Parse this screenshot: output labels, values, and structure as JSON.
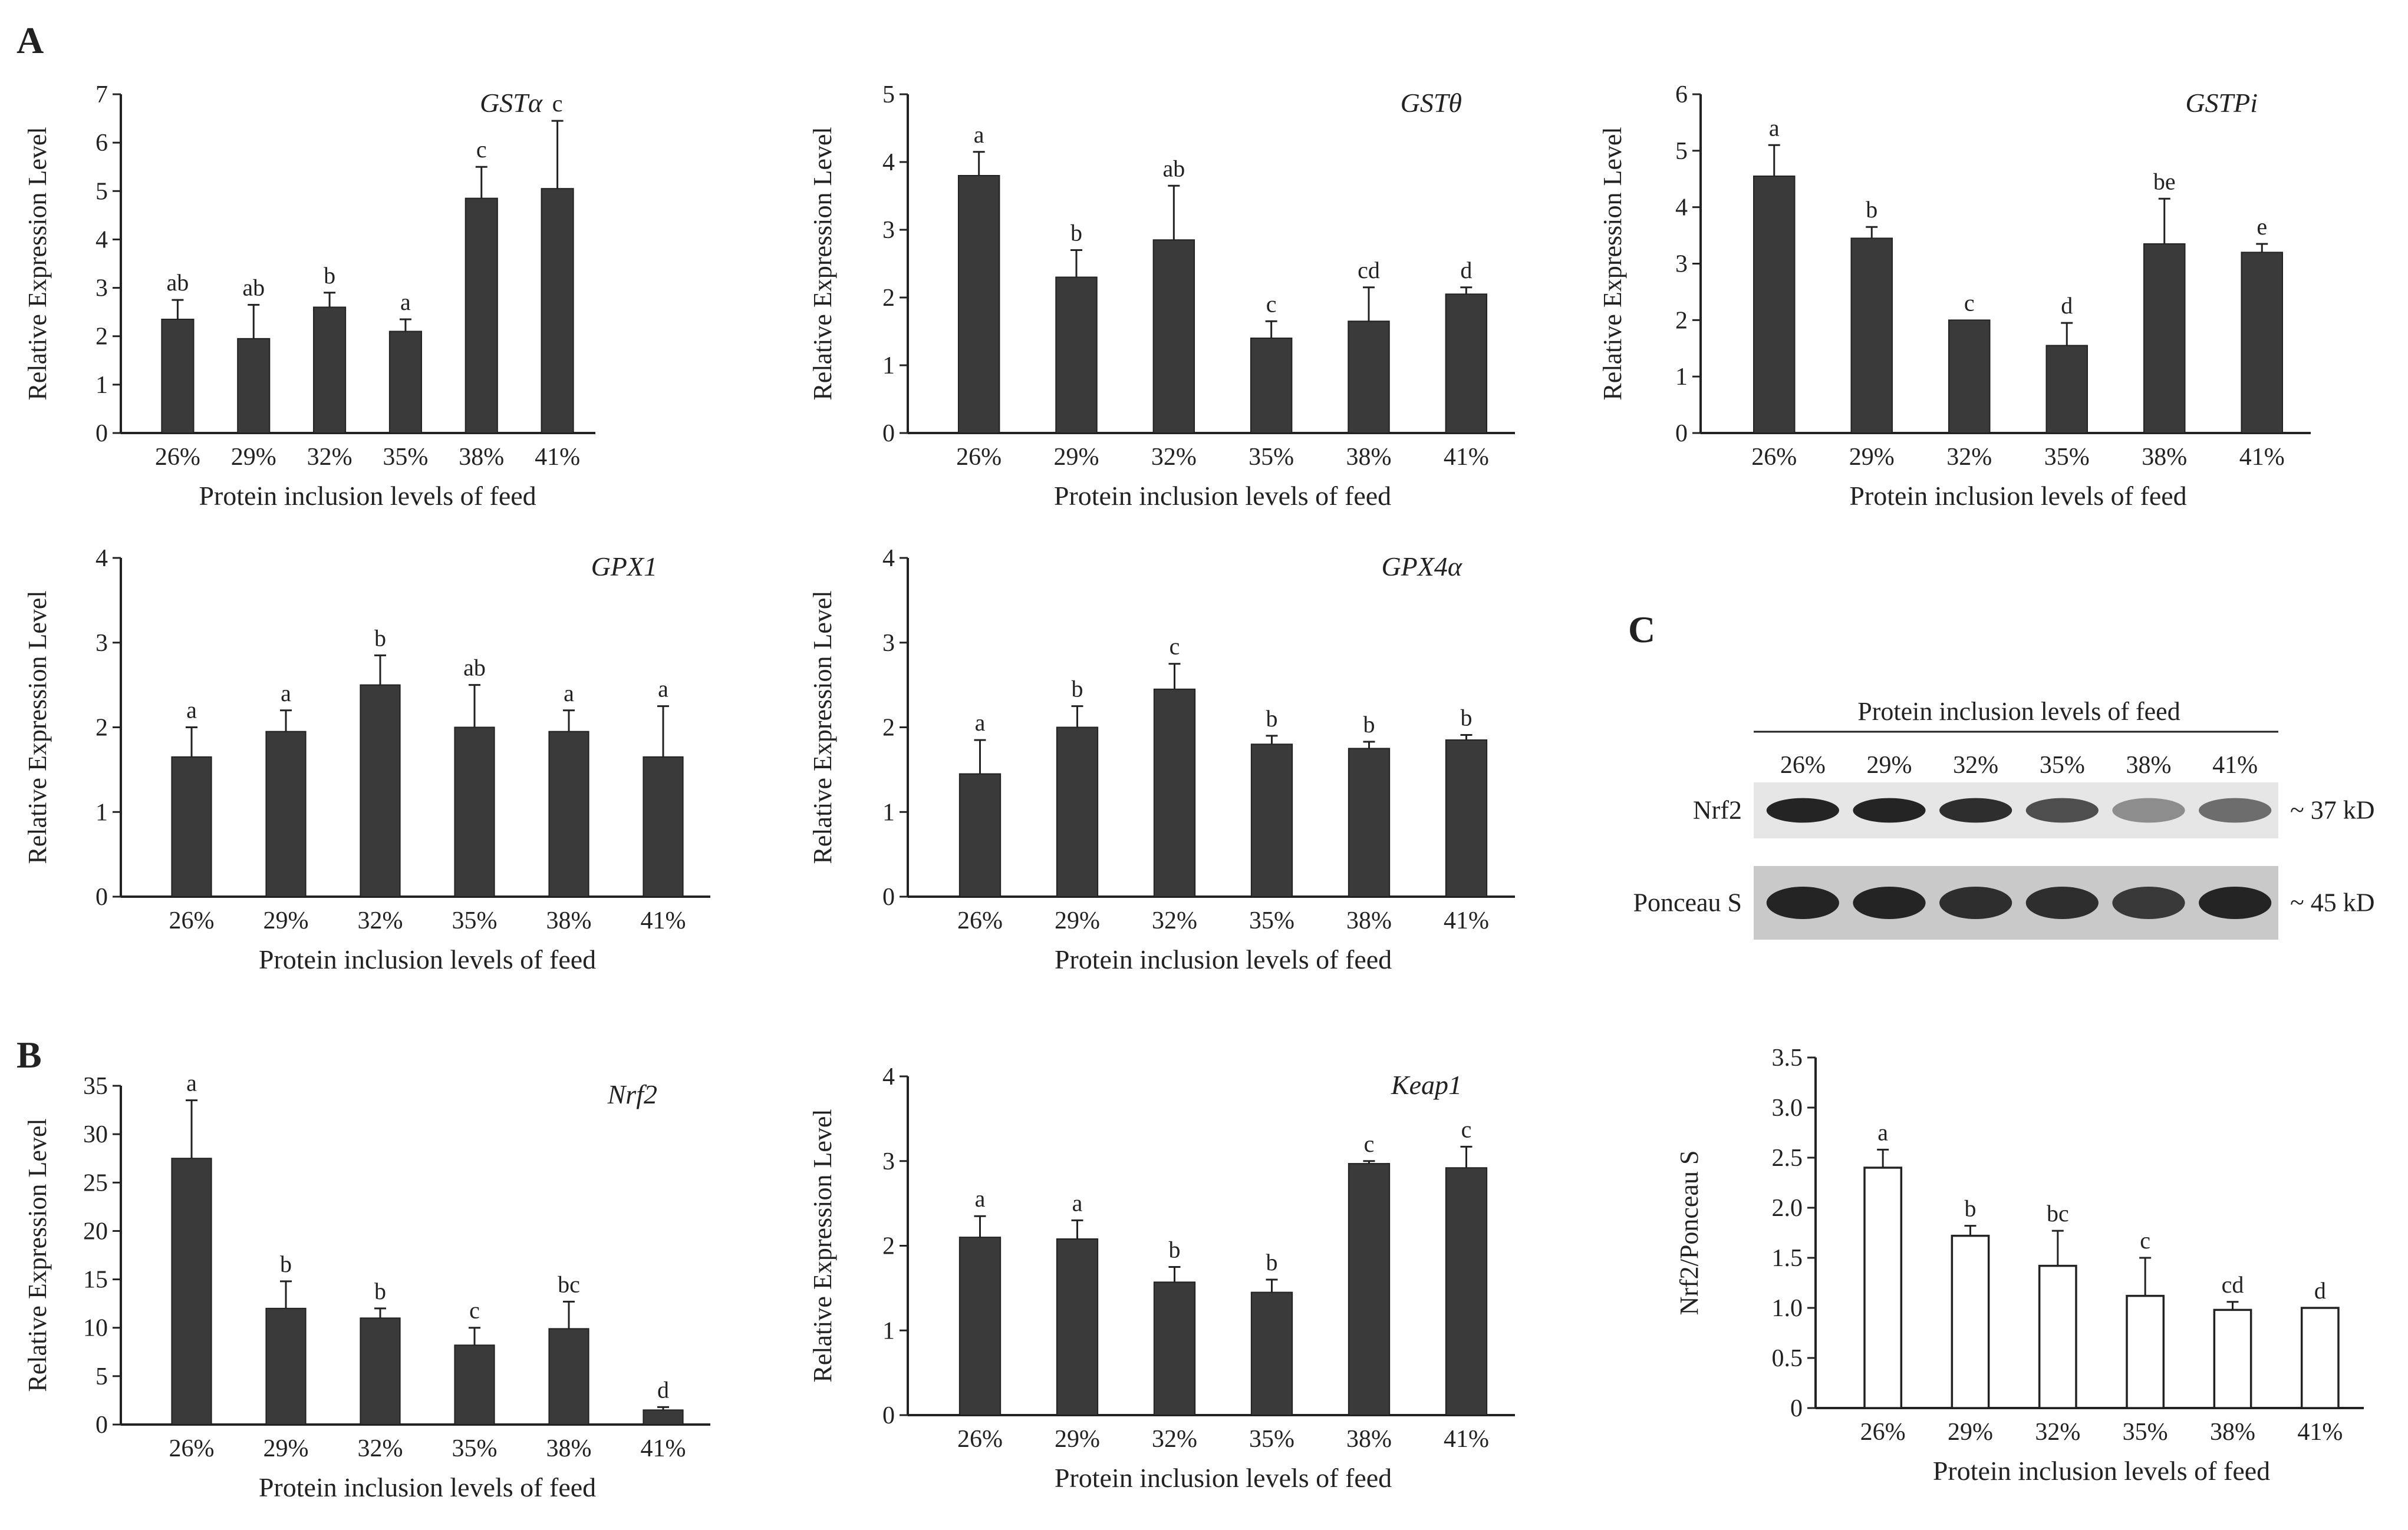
{
  "panel_labels": {
    "a": "A",
    "b": "B",
    "c": "C"
  },
  "chart_data": [
    {
      "type": "bar",
      "panel": "A",
      "gene": "GSTα",
      "ylabel": "Relative Expression Level",
      "xlabel": "Protein inclusion levels of feed",
      "categories": [
        "26%",
        "29%",
        "32%",
        "35%",
        "38%",
        "41%"
      ],
      "ylim": [
        0,
        7
      ],
      "yticks": [
        "0",
        "1",
        "2",
        "3",
        "4",
        "5",
        "6",
        "7"
      ],
      "values": [
        2.35,
        1.95,
        2.6,
        2.1,
        4.85,
        5.05
      ],
      "errors": [
        0.4,
        0.7,
        0.3,
        0.25,
        0.65,
        1.4
      ],
      "letters": [
        "ab",
        "ab",
        "b",
        "a",
        "c",
        "c"
      ]
    },
    {
      "type": "bar",
      "panel": "A",
      "gene": "GSTθ",
      "ylabel": "Relative Expression Level",
      "xlabel": "Protein inclusion levels of feed",
      "categories": [
        "26%",
        "29%",
        "32%",
        "35%",
        "38%",
        "41%"
      ],
      "ylim": [
        0,
        5
      ],
      "yticks": [
        "0",
        "1",
        "2",
        "3",
        "4",
        "5"
      ],
      "values": [
        3.8,
        2.3,
        2.85,
        1.4,
        1.65,
        2.05
      ],
      "errors": [
        0.35,
        0.4,
        0.8,
        0.25,
        0.5,
        0.1
      ],
      "letters": [
        "a",
        "b",
        "ab",
        "c",
        "cd",
        "d"
      ]
    },
    {
      "type": "bar",
      "panel": "A",
      "gene": "GSTPi",
      "ylabel": "Relative Expression Level",
      "xlabel": "Protein inclusion levels of feed",
      "categories": [
        "26%",
        "29%",
        "32%",
        "35%",
        "38%",
        "41%"
      ],
      "ylim": [
        0,
        6
      ],
      "yticks": [
        "0",
        "1",
        "2",
        "3",
        "4",
        "5",
        "6"
      ],
      "values": [
        4.55,
        3.45,
        2.0,
        1.55,
        3.35,
        3.2
      ],
      "errors": [
        0.55,
        0.2,
        0.0,
        0.4,
        0.8,
        0.15
      ],
      "letters": [
        "a",
        "b",
        "c",
        "d",
        "be",
        "e"
      ]
    },
    {
      "type": "bar",
      "panel": "A",
      "gene": "GPX1",
      "ylabel": "Relative Expression Level",
      "xlabel": "Protein inclusion levels of feed",
      "categories": [
        "26%",
        "29%",
        "32%",
        "35%",
        "38%",
        "41%"
      ],
      "ylim": [
        0,
        4
      ],
      "yticks": [
        "0",
        "1",
        "2",
        "3",
        "4"
      ],
      "values": [
        1.65,
        1.95,
        2.5,
        2.0,
        1.95,
        1.65
      ],
      "errors": [
        0.35,
        0.25,
        0.35,
        0.5,
        0.25,
        0.6
      ],
      "letters": [
        "a",
        "a",
        "b",
        "ab",
        "a",
        "a"
      ]
    },
    {
      "type": "bar",
      "panel": "A",
      "gene": "GPX4α",
      "ylabel": "Relative Expression Level",
      "xlabel": "Protein inclusion levels of feed",
      "categories": [
        "26%",
        "29%",
        "32%",
        "35%",
        "38%",
        "41%"
      ],
      "ylim": [
        0,
        4
      ],
      "yticks": [
        "0",
        "1",
        "2",
        "3",
        "4"
      ],
      "values": [
        1.45,
        2.0,
        2.45,
        1.8,
        1.75,
        1.85
      ],
      "errors": [
        0.4,
        0.25,
        0.3,
        0.1,
        0.08,
        0.06
      ],
      "letters": [
        "a",
        "b",
        "c",
        "b",
        "b",
        "b"
      ]
    },
    {
      "type": "bar",
      "panel": "B",
      "gene": "Nrf2",
      "ylabel": "Relative Expression Level",
      "xlabel": "Protein inclusion levels of feed",
      "categories": [
        "26%",
        "29%",
        "32%",
        "35%",
        "38%",
        "41%"
      ],
      "ylim": [
        0,
        35
      ],
      "yticks": [
        "0",
        "5",
        "10",
        "15",
        "20",
        "25",
        "30",
        "35"
      ],
      "values": [
        27.5,
        12.0,
        11.0,
        8.2,
        9.9,
        1.5
      ],
      "errors": [
        6.0,
        2.8,
        1.0,
        1.8,
        2.8,
        0.3
      ],
      "letters": [
        "a",
        "b",
        "b",
        "c",
        "bc",
        "d"
      ]
    },
    {
      "type": "bar",
      "panel": "B",
      "gene": "Keap1",
      "ylabel": "Relative Expression Level",
      "xlabel": "Protein inclusion levels of feed",
      "categories": [
        "26%",
        "29%",
        "32%",
        "35%",
        "38%",
        "41%"
      ],
      "ylim": [
        0,
        4
      ],
      "yticks": [
        "0",
        "1",
        "2",
        "3",
        "4"
      ],
      "values": [
        2.1,
        2.08,
        1.57,
        1.45,
        2.97,
        2.92
      ],
      "errors": [
        0.25,
        0.22,
        0.18,
        0.15,
        0.03,
        0.25
      ],
      "letters": [
        "a",
        "a",
        "b",
        "b",
        "c",
        "c"
      ]
    },
    {
      "type": "bar",
      "panel": "C",
      "gene": "",
      "ylabel": "Nrf2/Ponceau S",
      "xlabel": "Protein inclusion levels of feed",
      "categories": [
        "26%",
        "29%",
        "32%",
        "35%",
        "38%",
        "41%"
      ],
      "ylim": [
        0,
        3.5
      ],
      "yticks": [
        "0",
        "0.5",
        "1.0",
        "1.5",
        "2.0",
        "2.5",
        "3.0",
        "3.5"
      ],
      "values": [
        2.4,
        1.72,
        1.42,
        1.12,
        0.98,
        1.0
      ],
      "errors": [
        0.18,
        0.1,
        0.35,
        0.38,
        0.08,
        0.0
      ],
      "letters": [
        "a",
        "b",
        "bc",
        "c",
        "cd",
        "d"
      ],
      "bar_style": "open"
    }
  ],
  "blot": {
    "header": "Protein inclusion levels of feed",
    "lanes": [
      "26%",
      "29%",
      "32%",
      "35%",
      "38%",
      "41%"
    ],
    "rows": [
      {
        "label": "Nrf2",
        "marker": "~ 37 kD",
        "intensity": [
          0.95,
          0.95,
          0.9,
          0.75,
          0.45,
          0.6
        ]
      },
      {
        "label": "Ponceau S",
        "marker": "~ 45 kD",
        "intensity": [
          0.95,
          0.95,
          0.9,
          0.9,
          0.85,
          0.95
        ]
      }
    ]
  },
  "colors": {
    "bar_fill": "#3a3a3a",
    "axis": "#222222",
    "open_bar": "#ffffff"
  }
}
